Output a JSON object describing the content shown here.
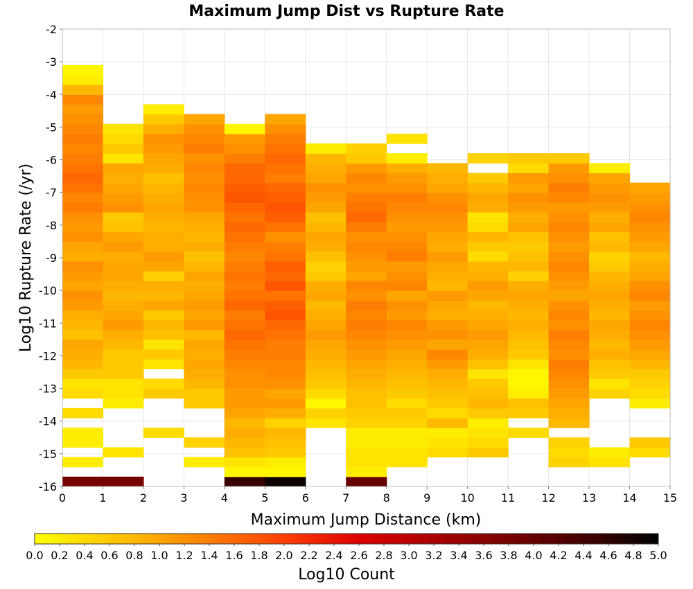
{
  "chart_data": {
    "type": "heatmap",
    "title": "Maximum Jump Dist vs Rupture Rate",
    "xlabel": "Maximum Jump Distance (km)",
    "ylabel": "Log10 Rupture Rate (/yr)",
    "xlim": [
      0,
      15
    ],
    "ylim": [
      -16,
      -2
    ],
    "x_ticks": [
      0,
      1,
      2,
      3,
      4,
      5,
      6,
      7,
      8,
      9,
      10,
      11,
      12,
      13,
      14,
      15
    ],
    "y_ticks": [
      -2,
      -3,
      -4,
      -5,
      -6,
      -7,
      -8,
      -9,
      -10,
      -11,
      -12,
      -13,
      -14,
      -15,
      -16
    ],
    "grid": true,
    "x_bin_width": 1,
    "y_bin_height": 0.3,
    "y_bin_start": -16,
    "columns": [
      {
        "x": 0,
        "log_counts": [
          3.8,
          0,
          0.2,
          0,
          0.2,
          0.2,
          0,
          0.4,
          0,
          0.4,
          0.3,
          0.6,
          0.8,
          0.9,
          1.0,
          0.7,
          0.8,
          0.9,
          1.1,
          1.2,
          1.0,
          1.1,
          1.2,
          0.9,
          1.0,
          1.2,
          1.1,
          1.2,
          1.4,
          1.3,
          1.5,
          1.6,
          1.5,
          1.4,
          1.3,
          1.4,
          1.3,
          1.2,
          1.1,
          1.3,
          0.8,
          0.2,
          0.1,
          0.0
        ]
      },
      {
        "x": 1,
        "log_counts": [
          3.8,
          0,
          0,
          0.3,
          0,
          0,
          0,
          0,
          0.2,
          0.3,
          0.3,
          0.6,
          0.6,
          0.6,
          0.8,
          0.9,
          1.1,
          1.0,
          0.9,
          0.8,
          0.9,
          1.0,
          1.0,
          0.9,
          1.1,
          1.0,
          0.7,
          0.6,
          1.2,
          1.1,
          1.0,
          0.9,
          1.0,
          0.3,
          0.6,
          0.4,
          0.3
        ]
      },
      {
        "x": 2,
        "log_counts": [
          0,
          0,
          0,
          0,
          0,
          0.4,
          0,
          0,
          0,
          0.6,
          0.4,
          0,
          0.3,
          0.6,
          0.3,
          0.7,
          0.8,
          0.6,
          1.0,
          0.8,
          0.9,
          0.5,
          1.0,
          1.1,
          0.9,
          0.9,
          0.8,
          0.9,
          1.0,
          0.9,
          0.8,
          0.7,
          0.9,
          1.0,
          1.1,
          1.2,
          0.9,
          0.6,
          0.2
        ]
      },
      {
        "x": 3,
        "log_counts": [
          0,
          0,
          0.2,
          0,
          0.5,
          0,
          0,
          0,
          0.6,
          0.6,
          0.8,
          0.9,
          1.0,
          0.9,
          1.0,
          0.8,
          1.1,
          1.0,
          1.1,
          1.0,
          0.9,
          1.0,
          0.8,
          0.7,
          0.9,
          0.8,
          0.9,
          1.0,
          1.2,
          1.2,
          1.3,
          1.2,
          1.3,
          1.2,
          1.4,
          1.3,
          1.2,
          1.0
        ]
      },
      {
        "x": 4,
        "log_counts": [
          4.5,
          0.1,
          0.3,
          0.7,
          0.8,
          0.9,
          0.8,
          1.0,
          1.1,
          1.1,
          1.2,
          1.2,
          1.3,
          1.4,
          1.5,
          1.6,
          1.5,
          1.4,
          1.6,
          1.5,
          1.4,
          1.5,
          1.4,
          1.3,
          1.4,
          1.5,
          1.6,
          1.5,
          1.6,
          1.8,
          1.7,
          1.6,
          1.6,
          1.4,
          1.2,
          1.1,
          0.1
        ]
      },
      {
        "x": 5,
        "log_counts": [
          4.9,
          0.1,
          0.2,
          0.6,
          0.7,
          0.8,
          0.5,
          0.9,
          1.1,
          1.0,
          1.2,
          1.3,
          1.3,
          1.4,
          1.4,
          1.5,
          1.6,
          1.8,
          1.7,
          1.5,
          1.8,
          1.6,
          1.7,
          1.5,
          1.4,
          1.2,
          1.5,
          1.7,
          1.8,
          1.7,
          1.6,
          1.4,
          1.5,
          1.6,
          1.5,
          1.4,
          1.2,
          1.0
        ]
      },
      {
        "x": 6,
        "log_counts": [
          0,
          0,
          0,
          0,
          0,
          0,
          0.3,
          0.5,
          0.1,
          0.4,
          0.6,
          0.7,
          0.8,
          0.9,
          1.0,
          1.1,
          1.0,
          0.9,
          0.8,
          1.0,
          0.9,
          0.6,
          0.5,
          0.7,
          0.9,
          1.0,
          0.8,
          0.7,
          1.0,
          1.1,
          1.2,
          1.0,
          0.9,
          0.8,
          0.2
        ]
      },
      {
        "x": 7,
        "log_counts": [
          4.0,
          0.2,
          0.3,
          0.3,
          0.2,
          0.2,
          0.5,
          0.6,
          0.7,
          0.7,
          0.8,
          0.9,
          1.0,
          1.1,
          1.2,
          1.3,
          1.4,
          1.3,
          1.4,
          1.2,
          1.3,
          1.0,
          1.1,
          1.2,
          1.3,
          1.2,
          1.4,
          1.6,
          1.5,
          1.4,
          1.2,
          1.3,
          1.1,
          0.6,
          0.5
        ]
      },
      {
        "x": 8,
        "log_counts": [
          0,
          0,
          0.3,
          0.3,
          0.2,
          0.2,
          0.5,
          0.6,
          0.4,
          0.6,
          0.7,
          0.8,
          0.9,
          1.0,
          1.1,
          1.2,
          1.3,
          1.1,
          1.2,
          1.0,
          1.3,
          1.2,
          1.1,
          1.4,
          1.3,
          1.2,
          1.1,
          1.2,
          1.3,
          1.4,
          1.2,
          1.1,
          0.9,
          0.2,
          0.0,
          0.3
        ]
      },
      {
        "x": 9,
        "log_counts": [
          0,
          0,
          0,
          0.4,
          0.3,
          0.2,
          0.8,
          0.4,
          0.6,
          0.7,
          0.8,
          0.9,
          1.1,
          1.3,
          1.0,
          1.2,
          1.1,
          0.9,
          1.0,
          1.1,
          0.8,
          0.9,
          1.0,
          1.1,
          0.9,
          1.0,
          1.1,
          1.2,
          1.3,
          1.2,
          1.0,
          0.9,
          0.8
        ]
      },
      {
        "x": 10,
        "log_counts": [
          0,
          0,
          0,
          0.6,
          0.4,
          0.3,
          0.2,
          0.6,
          0.8,
          0.7,
          0.6,
          0.3,
          0.7,
          0.9,
          1.0,
          1.1,
          1.0,
          0.9,
          0.8,
          1.0,
          1.1,
          0.9,
          0.8,
          0.4,
          0.6,
          0.8,
          0.4,
          0.3,
          0.9,
          1.0,
          0.8,
          0.6,
          0,
          0.5
        ]
      },
      {
        "x": 11,
        "log_counts": [
          0,
          0,
          0,
          0,
          0,
          0.4,
          0,
          0.6,
          0.7,
          0.2,
          0.1,
          0.1,
          0.3,
          0.6,
          0.7,
          0.8,
          0.9,
          0.8,
          0.9,
          1.0,
          0.9,
          0.5,
          0.8,
          0.7,
          0.6,
          0.7,
          1.0,
          0.9,
          1.1,
          1.2,
          1.0,
          1.1,
          0.4,
          0.6
        ]
      },
      {
        "x": 12,
        "log_counts": [
          0,
          0,
          0.5,
          0.4,
          0.5,
          0,
          0.8,
          0.9,
          1.0,
          1.1,
          1.2,
          1.3,
          1.4,
          1.2,
          1.3,
          1.4,
          1.2,
          1.3,
          1.2,
          1.0,
          1.1,
          1.2,
          1.3,
          1.2,
          1.1,
          1.2,
          1.3,
          1.2,
          1.1,
          1.3,
          1.4,
          1.2,
          1.1,
          0.6
        ]
      },
      {
        "x": 13,
        "log_counts": [
          0,
          0,
          0.3,
          0.2,
          0,
          0,
          0,
          0,
          0,
          0.5,
          0.3,
          0.6,
          0.7,
          0.9,
          0.8,
          0.9,
          1.0,
          0.8,
          0.9,
          1.0,
          0.9,
          0.8,
          0.6,
          0.5,
          0.8,
          0.7,
          1.0,
          0.9,
          1.1,
          1.2,
          1.1,
          1.0,
          0.2
        ]
      },
      {
        "x": 14,
        "log_counts": [
          0,
          0,
          0,
          0.4,
          0.6,
          0,
          0,
          0,
          0.2,
          0.4,
          0.5,
          0.6,
          0.8,
          1.0,
          1.1,
          1.2,
          1.3,
          1.2,
          1.1,
          1.3,
          1.2,
          1.0,
          0.9,
          0.8,
          1.0,
          1.1,
          1.2,
          1.3,
          1.2,
          1.1,
          1.0
        ]
      }
    ],
    "colorbar": {
      "label": "Log10 Count",
      "min": 0.0,
      "max": 5.0,
      "ticks": [
        "0.0",
        "0.2",
        "0.4",
        "0.6",
        "0.8",
        "1.0",
        "1.2",
        "1.4",
        "1.6",
        "1.8",
        "2.0",
        "2.2",
        "2.4",
        "2.6",
        "2.8",
        "3.0",
        "3.2",
        "3.4",
        "3.6",
        "3.8",
        "4.0",
        "4.2",
        "4.4",
        "4.6",
        "4.8",
        "5.0"
      ],
      "stops": [
        {
          "v": 0.0,
          "color": "#ffff00"
        },
        {
          "v": 1.0,
          "color": "#ffa500"
        },
        {
          "v": 2.0,
          "color": "#ff4000"
        },
        {
          "v": 2.6,
          "color": "#dd0000"
        },
        {
          "v": 3.6,
          "color": "#880000"
        },
        {
          "v": 4.4,
          "color": "#440000"
        },
        {
          "v": 5.0,
          "color": "#000000"
        }
      ]
    }
  }
}
